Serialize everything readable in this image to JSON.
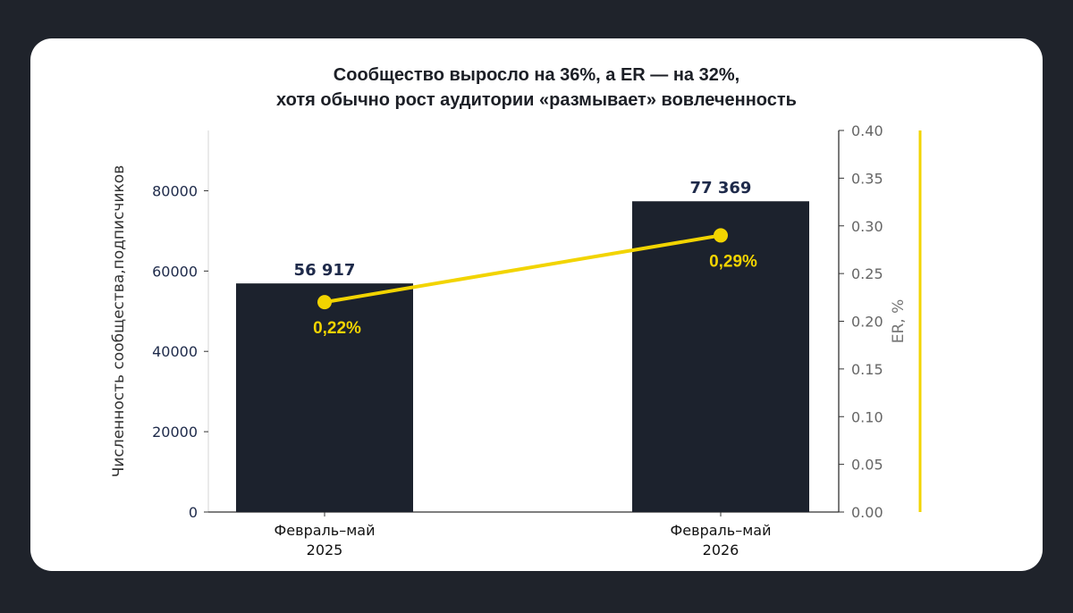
{
  "chart_data": {
    "type": "bar",
    "title_line1": "Сообщество выросло на 36%, а ER — на 32%,",
    "title_line2": "хотя обычно рост аудитории «размывает» вовлеченность",
    "categories": [
      [
        "Февраль–май",
        "2025"
      ],
      [
        "Февраль–май",
        "2026"
      ]
    ],
    "ylabel": "Численность сообщества,подписчиков",
    "ylim": [
      0,
      95000
    ],
    "yticks": [
      "0",
      "20000",
      "40000",
      "60000",
      "80000"
    ],
    "y2label": "ER, %",
    "y2lim": [
      0,
      0.4
    ],
    "y2ticks": [
      "0.00",
      "0.05",
      "0.10",
      "0.15",
      "0.20",
      "0.25",
      "0.30",
      "0.35",
      "0.40"
    ],
    "series": [
      {
        "type": "bar",
        "values": [
          56917,
          77369
        ],
        "labels": [
          "56 917",
          "77 369"
        ],
        "color": "#1c222d"
      },
      {
        "type": "line",
        "axis": "right",
        "values": [
          0.22,
          0.29
        ],
        "labels": [
          "0,22%",
          "0,29%"
        ],
        "color": "#f2d400"
      }
    ],
    "grid": false,
    "legend": "none"
  }
}
